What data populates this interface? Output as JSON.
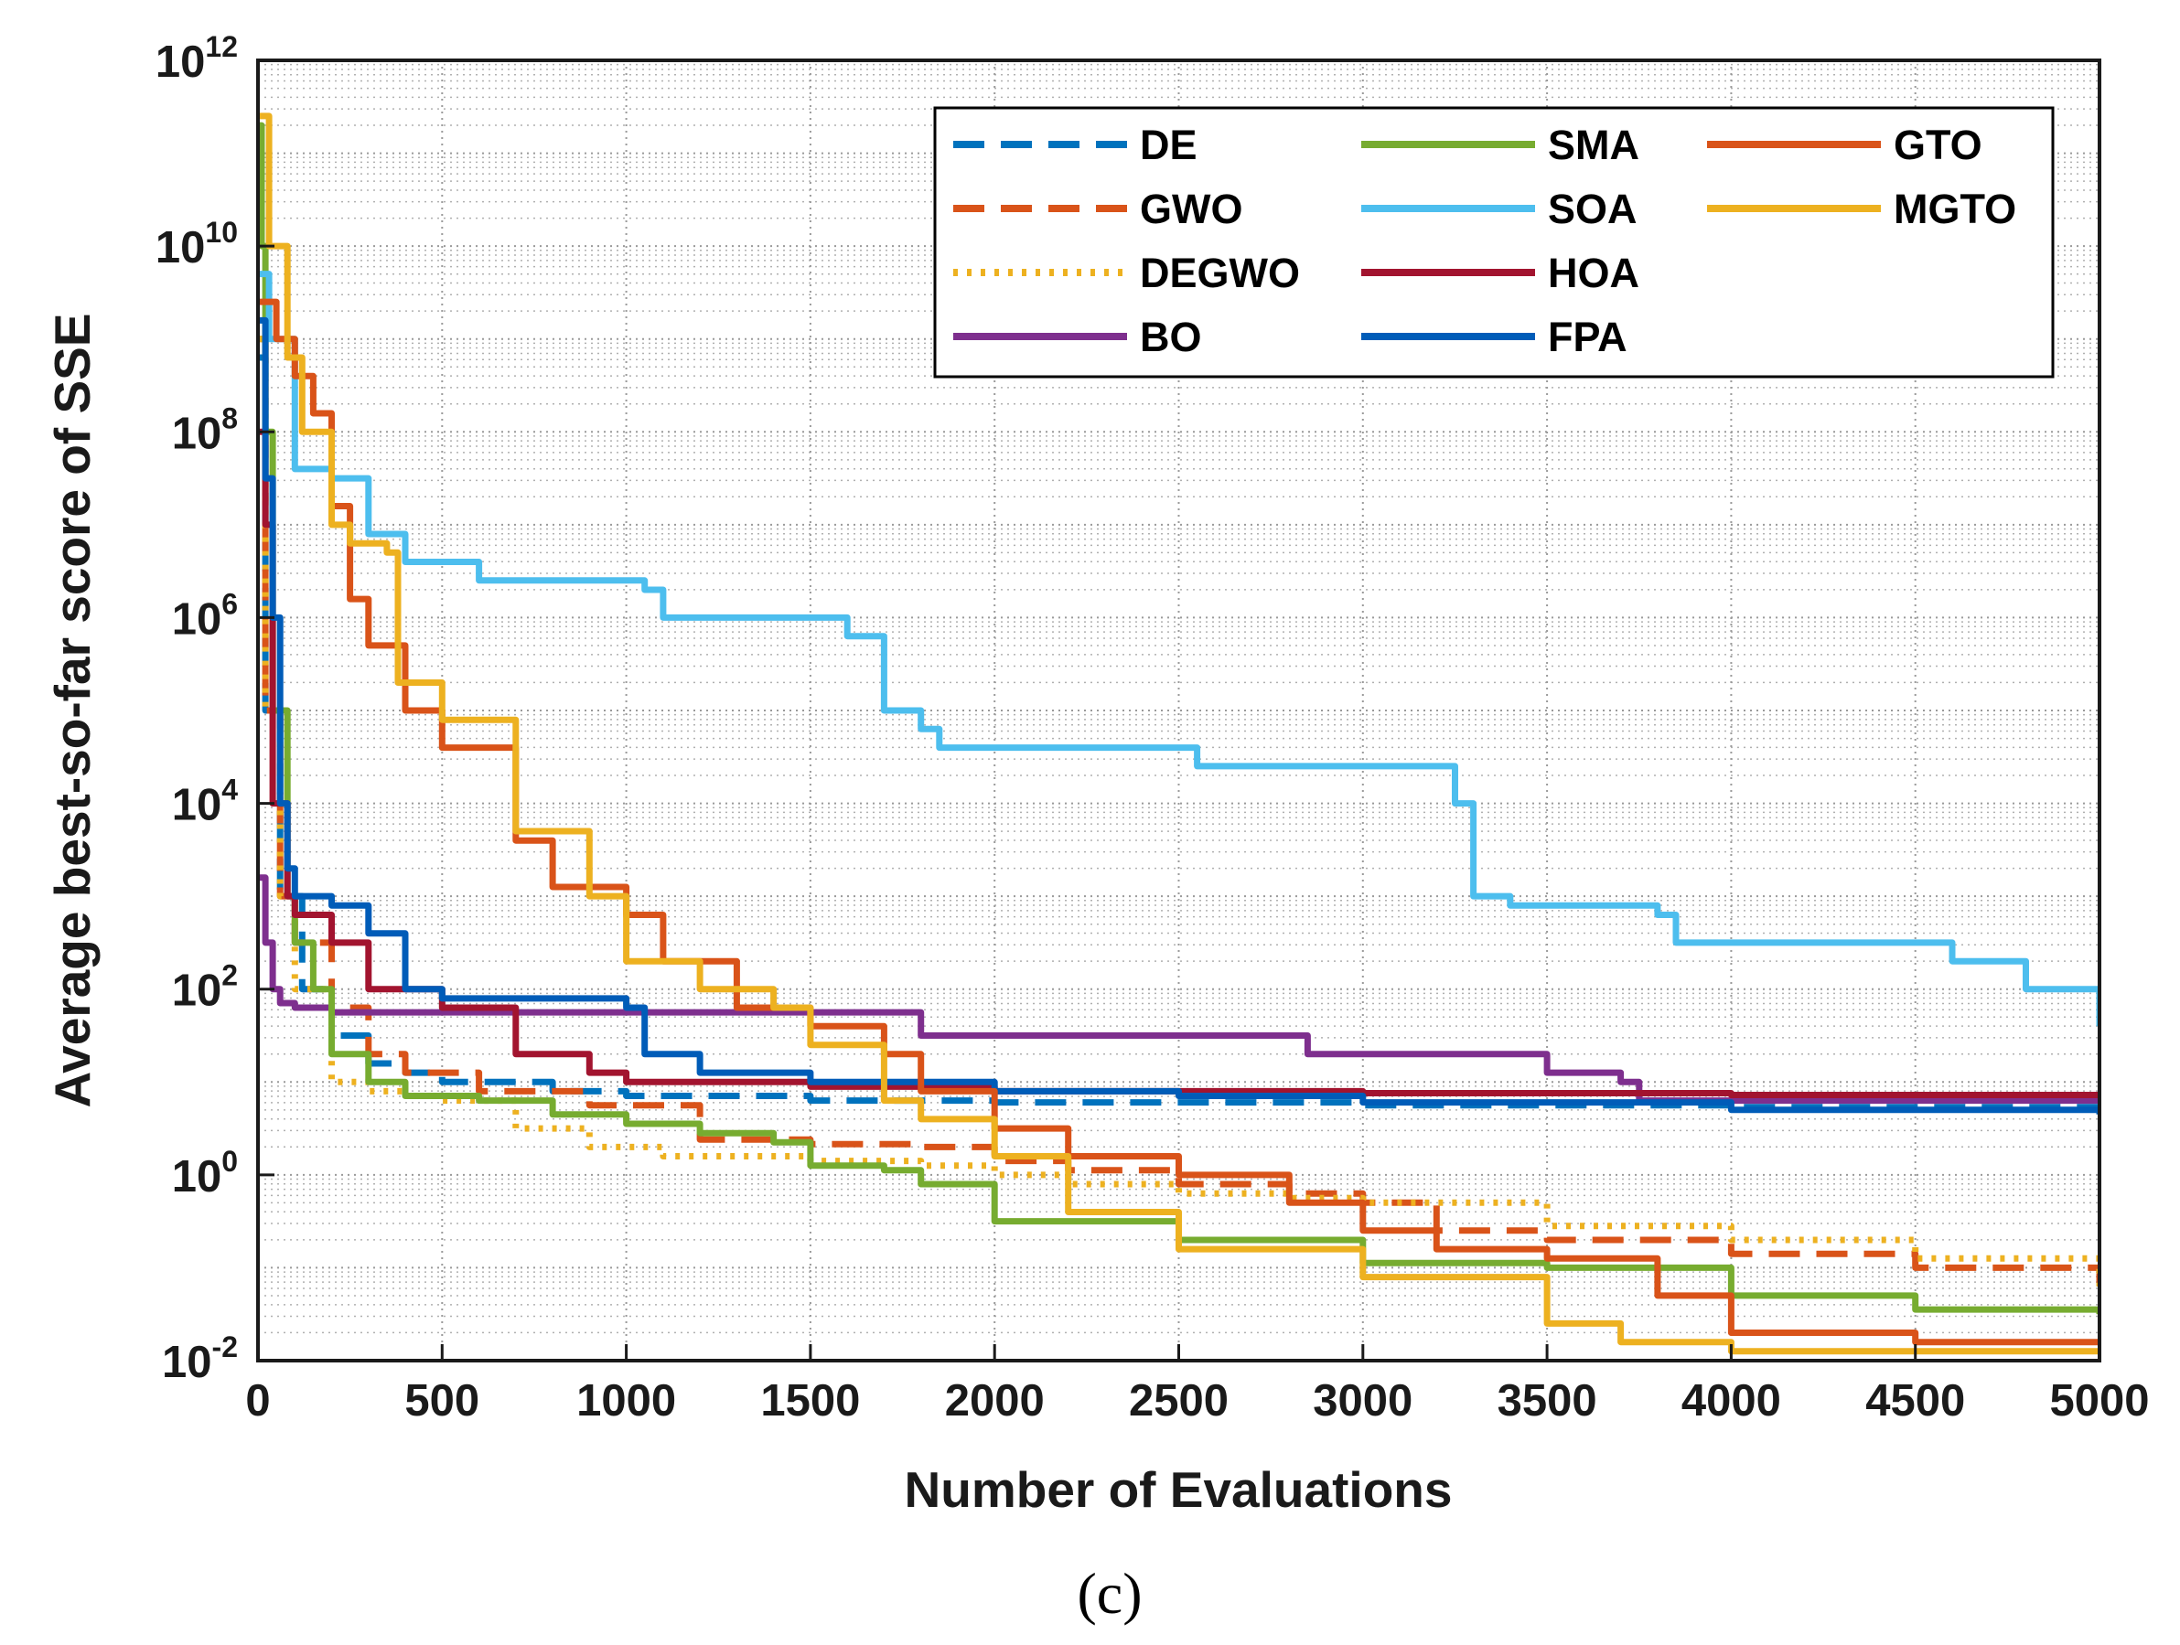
{
  "chart_data": {
    "type": "line",
    "title": "",
    "xlabel": "Number of Evaluations",
    "ylabel": "Average best-so-far score of SSE",
    "caption": "(c)",
    "xlim": [
      0,
      5000
    ],
    "ylim_exp": [
      -2,
      12
    ],
    "yscale": "log",
    "grid": true,
    "legend_location": "top-right",
    "x_ticks": [
      "0",
      "500",
      "1000",
      "1500",
      "2000",
      "2500",
      "3000",
      "3500",
      "4000",
      "4500",
      "5000"
    ],
    "y_tick_base": "10",
    "y_tick_exponents": [
      "-2",
      "0",
      "2",
      "4",
      "6",
      "8",
      "10",
      "12"
    ],
    "series": [
      {
        "name": "DE",
        "color": "#0072BD",
        "dash": "dash",
        "points": [
          [
            0,
            8.8
          ],
          [
            20,
            5
          ],
          [
            60,
            3
          ],
          [
            120,
            2
          ],
          [
            200,
            1.5
          ],
          [
            300,
            1.2
          ],
          [
            400,
            1.1
          ],
          [
            500,
            1.0
          ],
          [
            800,
            0.9
          ],
          [
            1000,
            0.85
          ],
          [
            1500,
            0.8
          ],
          [
            2000,
            0.78
          ],
          [
            3000,
            0.75
          ],
          [
            4000,
            0.73
          ],
          [
            5000,
            0.72
          ]
        ]
      },
      {
        "name": "GWO",
        "color": "#D95319",
        "dash": "dash",
        "points": [
          [
            0,
            9.0
          ],
          [
            20,
            5
          ],
          [
            60,
            3
          ],
          [
            100,
            2.5
          ],
          [
            200,
            1.8
          ],
          [
            300,
            1.3
          ],
          [
            400,
            1.1
          ],
          [
            600,
            0.9
          ],
          [
            900,
            0.75
          ],
          [
            1200,
            0.38
          ],
          [
            1500,
            0.33
          ],
          [
            1800,
            0.3
          ],
          [
            2000,
            0.15
          ],
          [
            2200,
            0.05
          ],
          [
            2500,
            -0.1
          ],
          [
            2800,
            -0.2
          ],
          [
            3000,
            -0.3
          ],
          [
            3200,
            -0.6
          ],
          [
            3500,
            -0.7
          ],
          [
            4000,
            -0.85
          ],
          [
            4500,
            -1.0
          ],
          [
            5000,
            -1.2
          ]
        ]
      },
      {
        "name": "DEGWO",
        "color": "#EDB120",
        "dash": "dot",
        "points": [
          [
            0,
            9.0
          ],
          [
            20,
            5
          ],
          [
            60,
            3
          ],
          [
            100,
            2.0
          ],
          [
            200,
            1.0
          ],
          [
            300,
            0.9
          ],
          [
            400,
            0.85
          ],
          [
            500,
            0.8
          ],
          [
            700,
            0.5
          ],
          [
            900,
            0.3
          ],
          [
            1100,
            0.2
          ],
          [
            1500,
            0.15
          ],
          [
            1800,
            0.1
          ],
          [
            2000,
            0.0
          ],
          [
            2200,
            -0.1
          ],
          [
            2500,
            -0.2
          ],
          [
            2800,
            -0.25
          ],
          [
            3000,
            -0.3
          ],
          [
            3500,
            -0.55
          ],
          [
            4000,
            -0.7
          ],
          [
            4500,
            -0.9
          ],
          [
            5000,
            -1.2
          ]
        ]
      },
      {
        "name": "BO",
        "color": "#7E2F8E",
        "dash": "solid",
        "points": [
          [
            0,
            3.2
          ],
          [
            20,
            2.5
          ],
          [
            40,
            2.0
          ],
          [
            60,
            1.85
          ],
          [
            100,
            1.8
          ],
          [
            200,
            1.75
          ],
          [
            400,
            1.75
          ],
          [
            800,
            1.75
          ],
          [
            1200,
            1.75
          ],
          [
            1800,
            1.5
          ],
          [
            2800,
            1.5
          ],
          [
            2850,
            1.3
          ],
          [
            3400,
            1.3
          ],
          [
            3500,
            1.1
          ],
          [
            3700,
            1.0
          ],
          [
            3750,
            0.8
          ],
          [
            4000,
            0.8
          ],
          [
            5000,
            0.8
          ]
        ]
      },
      {
        "name": "SMA",
        "color": "#77AC30",
        "dash": "solid",
        "points": [
          [
            0,
            11.3
          ],
          [
            10,
            10
          ],
          [
            20,
            8
          ],
          [
            40,
            5
          ],
          [
            80,
            3
          ],
          [
            100,
            2.5
          ],
          [
            150,
            2.0
          ],
          [
            200,
            1.3
          ],
          [
            300,
            1.0
          ],
          [
            400,
            0.85
          ],
          [
            600,
            0.8
          ],
          [
            800,
            0.65
          ],
          [
            1000,
            0.55
          ],
          [
            1200,
            0.45
          ],
          [
            1400,
            0.35
          ],
          [
            1500,
            0.1
          ],
          [
            1700,
            0.05
          ],
          [
            1800,
            -0.1
          ],
          [
            2000,
            -0.5
          ],
          [
            2500,
            -0.7
          ],
          [
            3000,
            -0.95
          ],
          [
            3500,
            -1.0
          ],
          [
            4000,
            -1.3
          ],
          [
            4500,
            -1.45
          ],
          [
            5000,
            -1.5
          ]
        ]
      },
      {
        "name": "SOA",
        "color": "#4DBEEE",
        "dash": "solid",
        "points": [
          [
            0,
            9.7
          ],
          [
            30,
            9.0
          ],
          [
            100,
            7.6
          ],
          [
            200,
            7.5
          ],
          [
            300,
            6.9
          ],
          [
            400,
            6.6
          ],
          [
            600,
            6.4
          ],
          [
            900,
            6.4
          ],
          [
            1050,
            6.3
          ],
          [
            1100,
            6.0
          ],
          [
            1600,
            5.8
          ],
          [
            1700,
            5.0
          ],
          [
            1800,
            4.8
          ],
          [
            1850,
            4.6
          ],
          [
            2200,
            4.6
          ],
          [
            2500,
            4.6
          ],
          [
            2550,
            4.4
          ],
          [
            3200,
            4.4
          ],
          [
            3250,
            4.0
          ],
          [
            3300,
            3.0
          ],
          [
            3400,
            2.9
          ],
          [
            3800,
            2.8
          ],
          [
            3850,
            2.5
          ],
          [
            4200,
            2.5
          ],
          [
            4600,
            2.3
          ],
          [
            4800,
            2.0
          ],
          [
            5000,
            1.6
          ]
        ]
      },
      {
        "name": "HOA",
        "color": "#A2142F",
        "dash": "solid",
        "points": [
          [
            0,
            8.0
          ],
          [
            20,
            7.0
          ],
          [
            40,
            4.0
          ],
          [
            80,
            3.0
          ],
          [
            100,
            2.8
          ],
          [
            200,
            2.5
          ],
          [
            300,
            2.0
          ],
          [
            500,
            1.8
          ],
          [
            700,
            1.3
          ],
          [
            900,
            1.1
          ],
          [
            1000,
            1.0
          ],
          [
            1500,
            0.95
          ],
          [
            2000,
            0.9
          ],
          [
            3000,
            0.88
          ],
          [
            4000,
            0.86
          ],
          [
            5000,
            0.86
          ]
        ]
      },
      {
        "name": "FPA",
        "color": "#005CB8",
        "dash": "solid",
        "points": [
          [
            0,
            9.2
          ],
          [
            20,
            7.5
          ],
          [
            40,
            6.0
          ],
          [
            60,
            4.0
          ],
          [
            80,
            3.3
          ],
          [
            100,
            3.0
          ],
          [
            200,
            2.9
          ],
          [
            300,
            2.6
          ],
          [
            400,
            2.0
          ],
          [
            500,
            1.9
          ],
          [
            700,
            1.9
          ],
          [
            1000,
            1.8
          ],
          [
            1050,
            1.3
          ],
          [
            1200,
            1.1
          ],
          [
            1500,
            1.0
          ],
          [
            2000,
            0.9
          ],
          [
            2500,
            0.85
          ],
          [
            3000,
            0.78
          ],
          [
            4000,
            0.7
          ],
          [
            5000,
            0.65
          ]
        ]
      },
      {
        "name": "GTO",
        "color": "#D95319",
        "dash": "solid",
        "points": [
          [
            0,
            9.4
          ],
          [
            50,
            9.0
          ],
          [
            100,
            8.6
          ],
          [
            150,
            8.2
          ],
          [
            200,
            7.2
          ],
          [
            250,
            6.2
          ],
          [
            300,
            5.7
          ],
          [
            400,
            5.0
          ],
          [
            500,
            4.6
          ],
          [
            700,
            3.6
          ],
          [
            800,
            3.1
          ],
          [
            1000,
            2.8
          ],
          [
            1100,
            2.3
          ],
          [
            1300,
            1.8
          ],
          [
            1500,
            1.6
          ],
          [
            1700,
            1.3
          ],
          [
            1800,
            0.9
          ],
          [
            2000,
            0.5
          ],
          [
            2200,
            0.2
          ],
          [
            2500,
            0.0
          ],
          [
            2800,
            -0.3
          ],
          [
            3000,
            -0.6
          ],
          [
            3200,
            -0.8
          ],
          [
            3500,
            -0.9
          ],
          [
            3800,
            -1.3
          ],
          [
            4000,
            -1.7
          ],
          [
            4500,
            -1.8
          ],
          [
            5000,
            -1.8
          ]
        ]
      },
      {
        "name": "MGTO",
        "color": "#EDB120",
        "dash": "solid",
        "points": [
          [
            0,
            11.4
          ],
          [
            30,
            10
          ],
          [
            80,
            8.8
          ],
          [
            120,
            8.0
          ],
          [
            200,
            7.0
          ],
          [
            250,
            6.8
          ],
          [
            350,
            6.7
          ],
          [
            380,
            5.3
          ],
          [
            500,
            4.9
          ],
          [
            700,
            3.7
          ],
          [
            900,
            3.0
          ],
          [
            1000,
            2.3
          ],
          [
            1200,
            2.0
          ],
          [
            1400,
            1.8
          ],
          [
            1500,
            1.4
          ],
          [
            1700,
            0.8
          ],
          [
            1800,
            0.6
          ],
          [
            2000,
            0.2
          ],
          [
            2200,
            -0.4
          ],
          [
            2500,
            -0.8
          ],
          [
            3000,
            -1.1
          ],
          [
            3500,
            -1.6
          ],
          [
            3700,
            -1.8
          ],
          [
            4000,
            -1.9
          ],
          [
            4500,
            -1.9
          ],
          [
            5000,
            -1.9
          ]
        ]
      }
    ]
  }
}
